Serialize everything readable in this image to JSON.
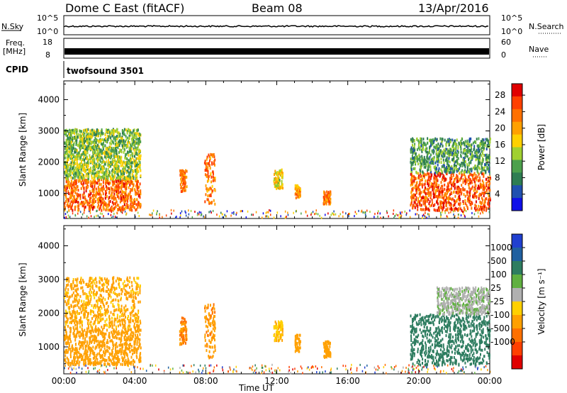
{
  "header": {
    "station": "Dome C East (fitACF)",
    "beam": "Beam 08",
    "date": "13/Apr/2016"
  },
  "status_panels": {
    "nsky_label": "N.Sky",
    "nsky_ticks": [
      "10^5",
      "10^0"
    ],
    "nsearch_label": "N.Search",
    "nsearch_ticks": [
      "10^5",
      "10^0"
    ],
    "freq_label_1": "Freq.",
    "freq_label_2": "[MHz]",
    "freq_ticks": [
      "18",
      "8"
    ],
    "nave_label": "Nave",
    "nave_ticks": [
      "60",
      "0"
    ],
    "cpid_label": "CPID",
    "cpid_value": "twofsound 3501"
  },
  "time_axis": {
    "label": "Time UT",
    "ticks": [
      "00:00",
      "04:00",
      "08:00",
      "12:00",
      "16:00",
      "20:00",
      "00:00"
    ],
    "hours": [
      0,
      4,
      8,
      12,
      16,
      20,
      24
    ]
  },
  "chart_data": [
    {
      "type": "heatmap",
      "title": "",
      "xlabel": "Time UT",
      "ylabel": "Slant Range [km]",
      "yticks": [
        "1000",
        "2000",
        "3000",
        "4000"
      ],
      "ylim": [
        200,
        4600
      ],
      "xlim": [
        0,
        24
      ],
      "colorbar": {
        "label": "Power [dB]",
        "ticks": [
          "4",
          "8",
          "12",
          "16",
          "20",
          "24",
          "28"
        ],
        "colors": [
          "#1010e8",
          "#2050b0",
          "#2e7d52",
          "#4ca04c",
          "#a0d030",
          "#ffd000",
          "#ffa000",
          "#ff7000",
          "#ff4000",
          "#e00000"
        ]
      },
      "echo_regions": [
        {
          "t0": 0.0,
          "t1": 4.3,
          "r0": 500,
          "r1": 1500,
          "v": 25
        },
        {
          "t0": 0.0,
          "t1": 4.3,
          "r0": 1500,
          "r1": 2300,
          "v": 15
        },
        {
          "t0": 0.0,
          "t1": 4.3,
          "r0": 2300,
          "r1": 3100,
          "v": 14
        },
        {
          "t0": 6.5,
          "t1": 6.9,
          "r0": 1100,
          "r1": 1800,
          "v": 24
        },
        {
          "t0": 7.9,
          "t1": 8.5,
          "r0": 700,
          "r1": 2300,
          "v": 24
        },
        {
          "t0": 11.8,
          "t1": 12.3,
          "r0": 1200,
          "r1": 1800,
          "v": 18
        },
        {
          "t0": 13.0,
          "t1": 13.3,
          "r0": 900,
          "r1": 1300,
          "v": 22
        },
        {
          "t0": 14.6,
          "t1": 15.0,
          "r0": 700,
          "r1": 1100,
          "v": 24
        },
        {
          "t0": 19.5,
          "t1": 24.0,
          "r0": 500,
          "r1": 1700,
          "v": 26
        },
        {
          "t0": 19.5,
          "t1": 24.0,
          "r0": 1700,
          "r1": 2800,
          "v": 12
        }
      ]
    },
    {
      "type": "heatmap",
      "title": "",
      "xlabel": "Time UT",
      "ylabel": "Slant Range [km]",
      "yticks": [
        "1000",
        "2000",
        "3000",
        "4000"
      ],
      "ylim": [
        200,
        4600
      ],
      "xlim": [
        0,
        24
      ],
      "colorbar": {
        "label": "Velocity [m s⁻¹]",
        "ticks": [
          "1000",
          "500",
          "100",
          "25",
          "-25",
          "-100",
          "-500",
          "-1000"
        ],
        "colors": [
          "#2040d0",
          "#2060a0",
          "#2e7d60",
          "#60b040",
          "#b0b0b0",
          "#ffd000",
          "#ffa000",
          "#ff7000",
          "#ff4000",
          "#e00000"
        ]
      },
      "echo_regions": [
        {
          "t0": 0.0,
          "t1": 4.3,
          "r0": 500,
          "r1": 1600,
          "v": -300
        },
        {
          "t0": 0.0,
          "t1": 4.3,
          "r0": 1600,
          "r1": 3100,
          "v": -150
        },
        {
          "t0": 6.5,
          "t1": 6.9,
          "r0": 1100,
          "r1": 1900,
          "v": -600
        },
        {
          "t0": 7.9,
          "t1": 8.5,
          "r0": 700,
          "r1": 2300,
          "v": -400
        },
        {
          "t0": 11.8,
          "t1": 12.3,
          "r0": 1200,
          "r1": 1800,
          "v": -80
        },
        {
          "t0": 13.0,
          "t1": 13.3,
          "r0": 900,
          "r1": 1400,
          "v": -200
        },
        {
          "t0": 14.6,
          "t1": 15.0,
          "r0": 700,
          "r1": 1200,
          "v": -300
        },
        {
          "t0": 19.5,
          "t1": 24.0,
          "r0": 500,
          "r1": 2000,
          "v": 300
        },
        {
          "t0": 21.0,
          "t1": 24.0,
          "r0": 2000,
          "r1": 2800,
          "v": 20
        }
      ]
    }
  ]
}
